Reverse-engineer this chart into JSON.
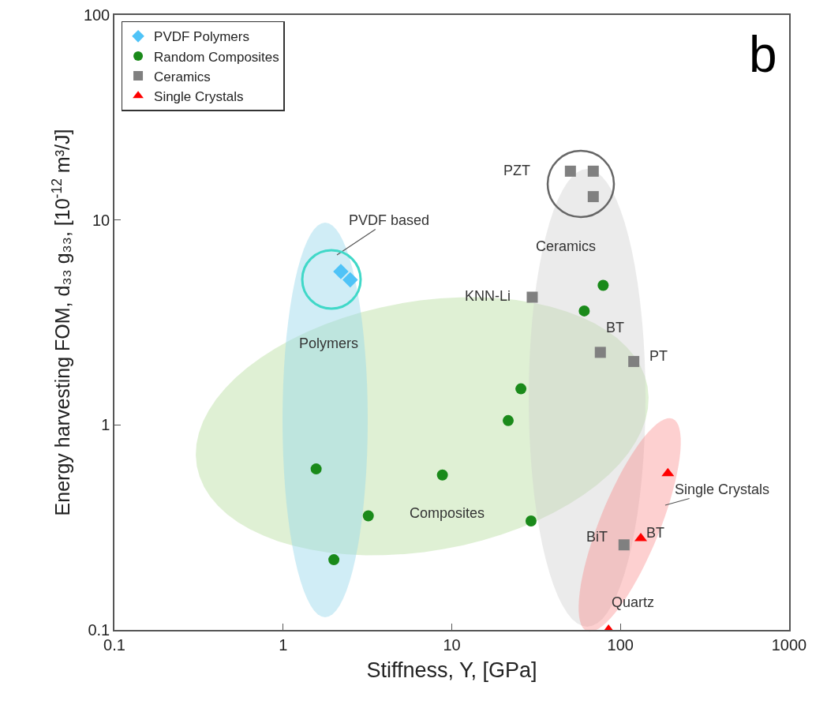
{
  "chart_data": {
    "type": "scatter",
    "xlabel": "Stiffness, Y, [GPa]",
    "ylabel": "Energy harvesting FOM, d₃₃ g₃₃, [10$^{-12}$ m³/J]",
    "log": "xy",
    "grid": false,
    "legend": "top left",
    "xlim": [
      0.1,
      1000
    ],
    "xticks": [
      0.1,
      1,
      10,
      100,
      1000
    ],
    "ylim": [
      0.1,
      100
    ],
    "yticks": [
      0.1,
      1,
      10,
      100
    ],
    "series": [
      {
        "name": "PVDF Polymers",
        "color": "#4fc3f7",
        "marker": "diamond",
        "x": [
          2.2,
          2.5
        ],
        "values": [
          5.6,
          5.1
        ]
      },
      {
        "name": "Random Composites",
        "color": "#1a8a1a",
        "marker": "circle",
        "x": [
          79,
          61,
          25.7,
          21.6,
          1.57,
          8.8,
          3.2,
          29.5,
          2.0
        ],
        "values": [
          4.8,
          3.6,
          1.5,
          1.05,
          0.61,
          0.57,
          0.36,
          0.34,
          0.22
        ]
      },
      {
        "name": "Ceramics",
        "color": "#808080",
        "marker": "square",
        "x": [
          50.5,
          69,
          69,
          30,
          76,
          120,
          105
        ],
        "values": [
          17.3,
          17.3,
          13,
          4.2,
          2.26,
          2.04,
          0.26
        ]
      },
      {
        "name": "Single Crystals",
        "color": "#ff0000",
        "marker": "triangle",
        "x": [
          191,
          132,
          85
        ],
        "values": [
          0.58,
          0.28,
          0.1
        ]
      }
    ],
    "annotations": [
      "PVDF based",
      "b",
      "Polymers",
      "Ceramics",
      "Composites",
      "PZT",
      "KNN-Li",
      "BT",
      "PT",
      "BiT",
      "BT",
      "Quartz",
      "Single Crystals"
    ]
  }
}
